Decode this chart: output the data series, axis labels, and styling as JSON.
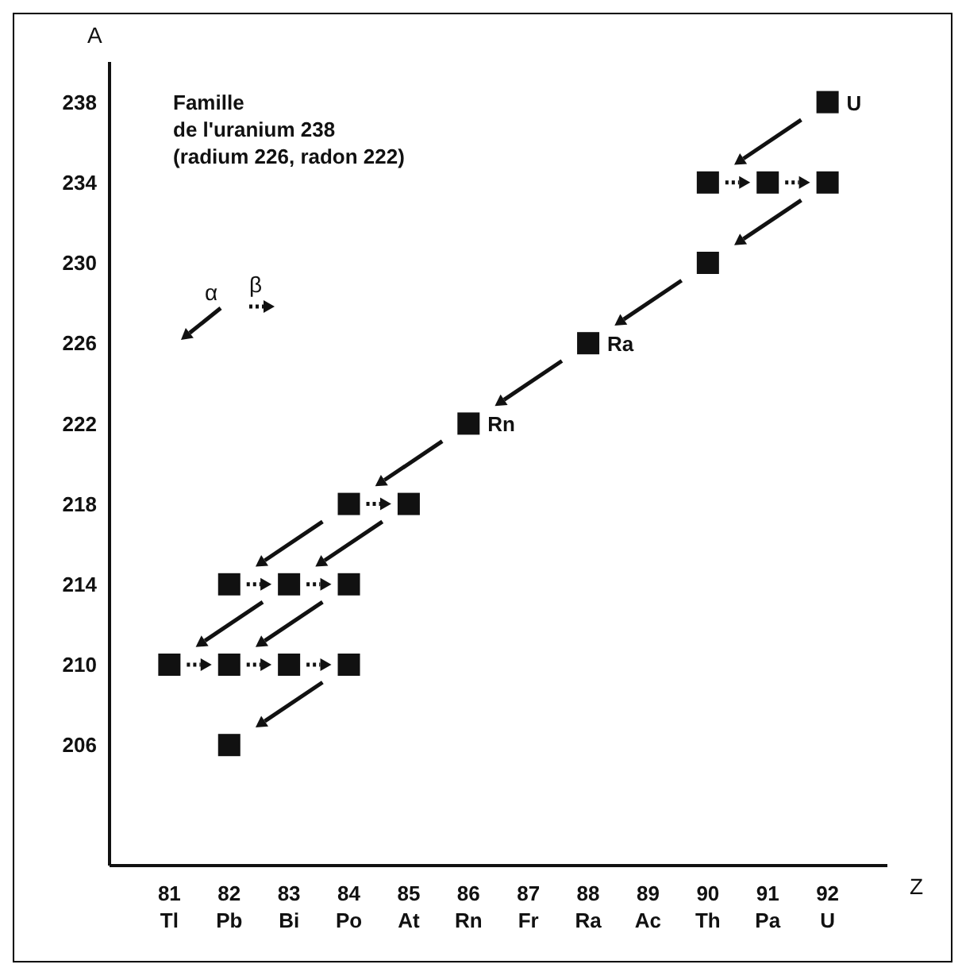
{
  "chart_data": {
    "type": "scatter",
    "xlabel": "Z",
    "ylabel": "A",
    "color": "#111111",
    "marker": "square",
    "grid": false,
    "x": [
      92,
      90,
      91,
      92,
      90,
      88,
      86,
      84,
      85,
      82,
      83,
      84,
      81,
      82,
      83,
      84,
      82
    ],
    "values": [
      238,
      234,
      234,
      234,
      230,
      226,
      222,
      218,
      218,
      214,
      214,
      214,
      210,
      210,
      210,
      210,
      206
    ],
    "xlim": [
      80,
      93
    ],
    "ylim": [
      200,
      240
    ],
    "xticks": [
      {
        "value": 81,
        "label": "81\nTl"
      },
      {
        "value": 82,
        "label": "82\nPb"
      },
      {
        "value": 83,
        "label": "83\nBi"
      },
      {
        "value": 84,
        "label": "84\nPo"
      },
      {
        "value": 85,
        "label": "85\nAt"
      },
      {
        "value": 86,
        "label": "86\nRn"
      },
      {
        "value": 87,
        "label": "87\nFr"
      },
      {
        "value": 88,
        "label": "88\nRa"
      },
      {
        "value": 89,
        "label": "89\nAc"
      },
      {
        "value": 90,
        "label": "90\nTh"
      },
      {
        "value": 91,
        "label": "91\nPa"
      },
      {
        "value": 92,
        "label": "92\nU"
      }
    ],
    "yticks": [
      206,
      210,
      214,
      218,
      222,
      226,
      230,
      234,
      238
    ],
    "annotations": [
      "Famille\nde l'uranium 238\n(radium 226, radon 222)",
      "α",
      "β",
      {
        "text": "U",
        "x": 92,
        "y": 238
      },
      {
        "text": "Ra",
        "x": 88,
        "y": 226
      },
      {
        "text": "Rn",
        "x": 86,
        "y": 222
      }
    ]
  }
}
